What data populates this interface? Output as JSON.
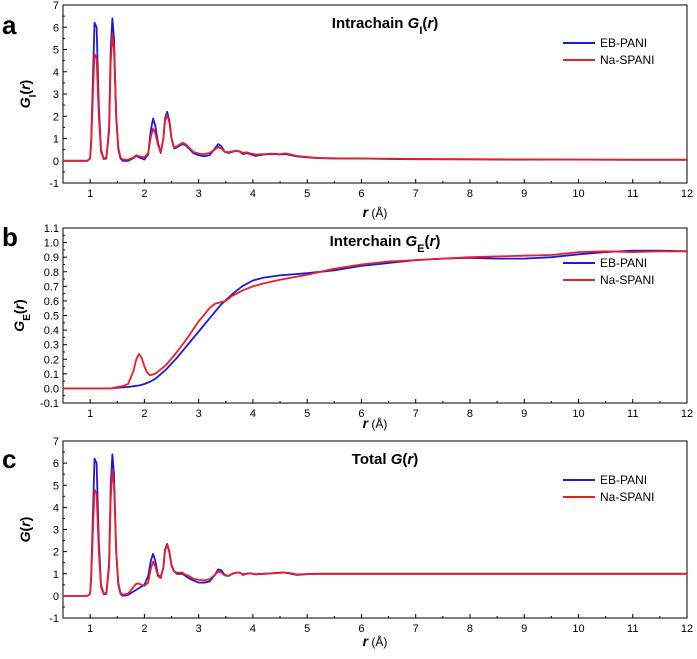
{
  "chart_data": [
    {
      "type": "line",
      "panel_label": "a",
      "title": "Intrachain",
      "title_symbol": "G",
      "title_subscript": "I",
      "title_arg": "r",
      "ylabel_symbol": "G",
      "ylabel_subscript": "I",
      "ylabel_arg": "r",
      "xlabel_symbol": "r",
      "xlabel_unit": "(Å)",
      "xlim": [
        0.5,
        12
      ],
      "ylim": [
        -1,
        7
      ],
      "xticks": [
        1,
        2,
        3,
        4,
        5,
        6,
        7,
        8,
        9,
        10,
        11,
        12
      ],
      "yticks": [
        -1,
        0,
        1,
        2,
        3,
        4,
        5,
        6,
        7
      ],
      "ytick_labels": [
        "-1",
        "0",
        "1",
        "2",
        "3",
        "4",
        "5",
        "6",
        "7"
      ],
      "legend_position": "top-right",
      "series": [
        {
          "name": "EB-PANI",
          "color": "#1a1adb",
          "x": [
            0.5,
            0.95,
            1.0,
            1.02,
            1.05,
            1.08,
            1.12,
            1.16,
            1.2,
            1.25,
            1.3,
            1.35,
            1.38,
            1.41,
            1.44,
            1.48,
            1.52,
            1.56,
            1.6,
            1.7,
            1.8,
            1.85,
            1.9,
            2.0,
            2.07,
            2.12,
            2.16,
            2.2,
            2.25,
            2.3,
            2.35,
            2.38,
            2.42,
            2.46,
            2.5,
            2.55,
            2.6,
            2.7,
            2.76,
            2.82,
            2.9,
            3.0,
            3.1,
            3.2,
            3.3,
            3.36,
            3.42,
            3.48,
            3.55,
            3.62,
            3.7,
            3.76,
            3.82,
            3.88,
            3.95,
            4.05,
            4.2,
            4.35,
            4.5,
            4.6,
            4.7,
            4.8,
            5.0,
            5.2,
            5.5,
            6.0,
            6.5,
            7.0,
            8.0,
            9.0,
            10.0,
            11.0,
            12.0
          ],
          "y": [
            0,
            0,
            0.1,
            0.9,
            3.5,
            6.2,
            6.0,
            2.5,
            0.5,
            0.08,
            0.1,
            1.5,
            5.0,
            6.4,
            5.5,
            2.0,
            0.5,
            0.1,
            0,
            0,
            0.12,
            0.22,
            0.15,
            0.05,
            0.3,
            1.4,
            1.9,
            1.6,
            0.8,
            0.35,
            1.0,
            1.9,
            2.2,
            1.8,
            1.0,
            0.55,
            0.6,
            0.75,
            0.7,
            0.55,
            0.35,
            0.25,
            0.2,
            0.25,
            0.55,
            0.75,
            0.65,
            0.4,
            0.35,
            0.4,
            0.45,
            0.4,
            0.3,
            0.35,
            0.3,
            0.22,
            0.28,
            0.3,
            0.28,
            0.3,
            0.25,
            0.2,
            0.15,
            0.12,
            0.1,
            0.1,
            0.08,
            0.07,
            0.06,
            0.05,
            0.05,
            0.04,
            0.04
          ]
        },
        {
          "name": "Na-SPANI",
          "color": "#ee1c25",
          "x": [
            0.5,
            0.95,
            1.0,
            1.02,
            1.05,
            1.08,
            1.12,
            1.16,
            1.2,
            1.25,
            1.3,
            1.35,
            1.38,
            1.41,
            1.44,
            1.48,
            1.52,
            1.56,
            1.6,
            1.7,
            1.8,
            1.85,
            1.9,
            2.0,
            2.07,
            2.12,
            2.16,
            2.2,
            2.25,
            2.3,
            2.35,
            2.38,
            2.42,
            2.46,
            2.5,
            2.55,
            2.6,
            2.7,
            2.76,
            2.82,
            2.9,
            3.0,
            3.1,
            3.2,
            3.3,
            3.36,
            3.42,
            3.48,
            3.55,
            3.62,
            3.7,
            3.76,
            3.82,
            3.88,
            3.95,
            4.05,
            4.2,
            4.35,
            4.5,
            4.6,
            4.7,
            4.8,
            5.0,
            5.2,
            5.5,
            6.0,
            6.5,
            7.0,
            8.0,
            9.0,
            10.0,
            11.0,
            12.0
          ],
          "y": [
            0,
            0,
            0.1,
            0.8,
            2.8,
            4.8,
            4.6,
            2.0,
            0.4,
            0.1,
            0.15,
            1.3,
            4.4,
            5.7,
            5.0,
            2.0,
            0.6,
            0.15,
            0.05,
            0.05,
            0.15,
            0.25,
            0.2,
            0.15,
            0.35,
            1.1,
            1.45,
            1.25,
            0.7,
            0.4,
            1.0,
            1.8,
            2.05,
            1.7,
            1.0,
            0.6,
            0.65,
            0.8,
            0.75,
            0.6,
            0.4,
            0.32,
            0.3,
            0.35,
            0.5,
            0.62,
            0.55,
            0.4,
            0.38,
            0.42,
            0.45,
            0.42,
            0.35,
            0.38,
            0.33,
            0.28,
            0.3,
            0.32,
            0.3,
            0.33,
            0.28,
            0.22,
            0.17,
            0.13,
            0.11,
            0.1,
            0.09,
            0.08,
            0.07,
            0.06,
            0.05,
            0.05,
            0.05
          ]
        }
      ]
    },
    {
      "type": "line",
      "panel_label": "b",
      "title": "Interchain",
      "title_symbol": "G",
      "title_subscript": "E",
      "title_arg": "r",
      "ylabel_symbol": "G",
      "ylabel_subscript": "E",
      "ylabel_arg": "r",
      "xlabel_symbol": "r",
      "xlabel_unit": "(Å)",
      "xlim": [
        0.5,
        12
      ],
      "ylim": [
        -0.1,
        1.1
      ],
      "xticks": [
        1,
        2,
        3,
        4,
        5,
        6,
        7,
        8,
        9,
        10,
        11,
        12
      ],
      "yticks": [
        -0.1,
        0,
        0.1,
        0.2,
        0.3,
        0.4,
        0.5,
        0.6,
        0.7,
        0.8,
        0.9,
        1.0,
        1.1
      ],
      "ytick_labels": [
        "-0.1",
        "0.0",
        "0.1",
        "0.2",
        "0.3",
        "0.4",
        "0.5",
        "0.6",
        "0.7",
        "0.8",
        "0.9",
        "1.0",
        "1.1"
      ],
      "legend_position": "center-right",
      "series": [
        {
          "name": "EB-PANI",
          "color": "#1a1adb",
          "x": [
            0.5,
            1.4,
            1.5,
            1.6,
            1.7,
            1.8,
            1.9,
            2.0,
            2.1,
            2.2,
            2.4,
            2.6,
            2.8,
            3.0,
            3.2,
            3.4,
            3.6,
            3.8,
            4.0,
            4.2,
            4.5,
            5.0,
            5.5,
            6.0,
            6.5,
            7.0,
            7.5,
            8.0,
            8.5,
            9.0,
            9.5,
            10.0,
            10.5,
            11.0,
            11.5,
            12.0
          ],
          "y": [
            0,
            0,
            0.005,
            0.008,
            0.01,
            0.015,
            0.02,
            0.03,
            0.045,
            0.065,
            0.13,
            0.21,
            0.3,
            0.39,
            0.48,
            0.57,
            0.64,
            0.7,
            0.74,
            0.76,
            0.775,
            0.79,
            0.81,
            0.84,
            0.86,
            0.88,
            0.89,
            0.895,
            0.89,
            0.89,
            0.9,
            0.92,
            0.935,
            0.945,
            0.945,
            0.94
          ]
        },
        {
          "name": "Na-SPANI",
          "color": "#ee1c25",
          "x": [
            0.5,
            1.4,
            1.5,
            1.6,
            1.7,
            1.8,
            1.85,
            1.9,
            1.95,
            2.0,
            2.05,
            2.1,
            2.2,
            2.4,
            2.6,
            2.8,
            3.0,
            3.2,
            3.3,
            3.4,
            3.5,
            3.6,
            3.8,
            4.0,
            4.2,
            4.5,
            5.0,
            5.5,
            6.0,
            6.5,
            7.0,
            7.5,
            8.0,
            8.5,
            9.0,
            9.5,
            10.0,
            10.5,
            11.0,
            11.5,
            12.0
          ],
          "y": [
            0,
            0,
            0.01,
            0.015,
            0.03,
            0.12,
            0.2,
            0.235,
            0.21,
            0.15,
            0.11,
            0.09,
            0.1,
            0.16,
            0.25,
            0.35,
            0.46,
            0.55,
            0.58,
            0.59,
            0.6,
            0.63,
            0.67,
            0.7,
            0.72,
            0.745,
            0.78,
            0.82,
            0.85,
            0.87,
            0.88,
            0.89,
            0.9,
            0.905,
            0.91,
            0.915,
            0.935,
            0.94,
            0.935,
            0.94,
            0.94
          ]
        }
      ]
    },
    {
      "type": "line",
      "panel_label": "c",
      "title": "Total",
      "title_symbol": "G",
      "title_subscript": "",
      "title_arg": "r",
      "ylabel_symbol": "G",
      "ylabel_subscript": "",
      "ylabel_arg": "r",
      "xlabel_symbol": "r",
      "xlabel_unit": "(Å)",
      "xlim": [
        0.5,
        12
      ],
      "ylim": [
        -1,
        7
      ],
      "xticks": [
        1,
        2,
        3,
        4,
        5,
        6,
        7,
        8,
        9,
        10,
        11,
        12
      ],
      "yticks": [
        -1,
        0,
        1,
        2,
        3,
        4,
        5,
        6,
        7
      ],
      "ytick_labels": [
        "-1",
        "0",
        "1",
        "2",
        "3",
        "4",
        "5",
        "6",
        "7"
      ],
      "legend_position": "top-right",
      "series": [
        {
          "name": "EB-PANI",
          "color": "#1a1adb",
          "x": [
            0.5,
            0.95,
            1.0,
            1.02,
            1.05,
            1.08,
            1.12,
            1.16,
            1.2,
            1.25,
            1.3,
            1.35,
            1.38,
            1.41,
            1.44,
            1.48,
            1.52,
            1.56,
            1.6,
            1.7,
            1.8,
            1.9,
            2.0,
            2.07,
            2.12,
            2.16,
            2.2,
            2.25,
            2.3,
            2.35,
            2.38,
            2.42,
            2.46,
            2.5,
            2.55,
            2.6,
            2.7,
            2.76,
            2.82,
            2.9,
            3.0,
            3.1,
            3.2,
            3.3,
            3.36,
            3.42,
            3.48,
            3.55,
            3.62,
            3.7,
            3.76,
            3.82,
            3.88,
            3.95,
            4.05,
            4.2,
            4.35,
            4.5,
            4.6,
            4.7,
            4.8,
            5.0,
            5.2,
            5.5,
            6.0,
            6.5,
            7.0,
            8.0,
            9.0,
            10.0,
            11.0,
            12.0
          ],
          "y": [
            0,
            0,
            0.1,
            0.9,
            3.5,
            6.2,
            6.0,
            2.5,
            0.5,
            0.08,
            0.1,
            1.5,
            5.0,
            6.4,
            5.5,
            2.0,
            0.5,
            0.1,
            0,
            0.05,
            0.2,
            0.35,
            0.5,
            0.9,
            1.6,
            1.9,
            1.6,
            0.95,
            0.85,
            1.3,
            2.1,
            2.35,
            2.0,
            1.4,
            1.1,
            1.0,
            1.0,
            0.9,
            0.8,
            0.7,
            0.6,
            0.6,
            0.65,
            0.95,
            1.2,
            1.15,
            0.95,
            0.9,
            1.0,
            1.05,
            1.05,
            0.95,
            1.0,
            1.02,
            0.97,
            1.0,
            1.02,
            1.05,
            1.05,
            1.0,
            0.95,
            0.98,
            1.0,
            1.0,
            1.0,
            1.0,
            1.0,
            1.0,
            1.0,
            1.0,
            1.0,
            1.0
          ]
        },
        {
          "name": "Na-SPANI",
          "color": "#ee1c25",
          "x": [
            0.5,
            0.95,
            1.0,
            1.02,
            1.05,
            1.08,
            1.12,
            1.16,
            1.2,
            1.25,
            1.3,
            1.35,
            1.38,
            1.41,
            1.44,
            1.48,
            1.52,
            1.56,
            1.6,
            1.7,
            1.8,
            1.85,
            1.9,
            2.0,
            2.07,
            2.12,
            2.16,
            2.2,
            2.25,
            2.3,
            2.35,
            2.38,
            2.42,
            2.46,
            2.5,
            2.55,
            2.6,
            2.7,
            2.76,
            2.82,
            2.9,
            3.0,
            3.1,
            3.2,
            3.3,
            3.36,
            3.42,
            3.48,
            3.55,
            3.62,
            3.7,
            3.76,
            3.82,
            3.88,
            3.95,
            4.05,
            4.2,
            4.35,
            4.5,
            4.6,
            4.7,
            4.8,
            5.0,
            5.2,
            5.5,
            6.0,
            6.5,
            7.0,
            8.0,
            9.0,
            10.0,
            11.0,
            12.0
          ],
          "y": [
            0,
            0,
            0.1,
            0.8,
            2.8,
            4.8,
            4.6,
            2.0,
            0.4,
            0.1,
            0.15,
            1.3,
            4.4,
            5.7,
            5.0,
            2.0,
            0.6,
            0.15,
            0.05,
            0.1,
            0.4,
            0.55,
            0.55,
            0.45,
            0.6,
            1.25,
            1.55,
            1.35,
            0.9,
            0.8,
            1.3,
            2.05,
            2.3,
            1.95,
            1.35,
            1.1,
            1.05,
            1.05,
            0.95,
            0.9,
            0.78,
            0.72,
            0.7,
            0.75,
            0.95,
            1.1,
            1.05,
            0.92,
            0.9,
            1.0,
            1.05,
            1.04,
            0.98,
            1.0,
            1.02,
            0.98,
            1.0,
            1.02,
            1.04,
            1.05,
            1.02,
            0.97,
            0.99,
            1.0,
            1.0,
            1.0,
            1.0,
            1.0,
            1.0,
            1.0,
            1.0,
            1.0,
            1.0
          ]
        }
      ]
    }
  ]
}
